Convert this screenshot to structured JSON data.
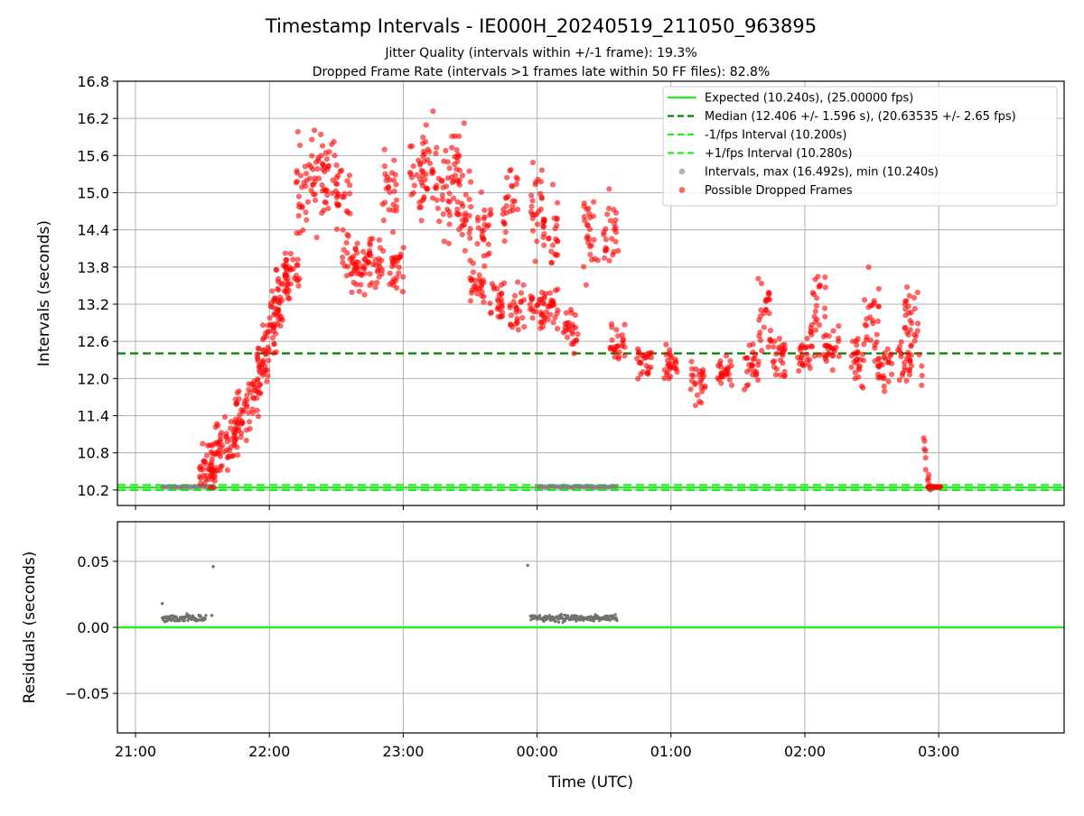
{
  "chart_data": [
    {
      "type": "scatter",
      "title": "Timestamp Intervals - IE000H_20240519_211050_963895",
      "subtitle_1": "Jitter Quality (intervals within +/-1 frame): 19.3%",
      "subtitle_2": "Dropped Frame Rate (intervals >1 frames late within 50 FF files): 82.8%",
      "ylabel": "Intervals (seconds)",
      "ylim": [
        9.95,
        16.8
      ],
      "xlim": [
        "21:00",
        "03:55"
      ],
      "x_unit": "hours since 21:00 UTC",
      "yticks": [
        "10.2",
        "10.8",
        "11.4",
        "12.0",
        "12.6",
        "13.2",
        "13.8",
        "14.4",
        "15.0",
        "15.6",
        "16.2",
        "16.8"
      ],
      "grid": true,
      "legend_position": "top-right",
      "legend": [
        {
          "label": "Expected (10.240s), (25.00000 fps)",
          "style": "solid",
          "color": "#22ee22"
        },
        {
          "label": "Median (12.406 +/- 1.596 s), (20.63535 +/- 2.65 fps)",
          "style": "dashed",
          "color": "#008000"
        },
        {
          "label": "-1/fps Interval (10.200s)",
          "style": "dashed",
          "color": "#22ee22"
        },
        {
          "label": "+1/fps Interval (10.280s)",
          "style": "dashed",
          "color": "#22ee22"
        },
        {
          "label": "Intervals, max (16.492s), min (10.240s)",
          "style": "marker",
          "color": "#808080"
        },
        {
          "label": "Possible Dropped Frames",
          "style": "marker",
          "color": "#ff0000"
        }
      ],
      "lines": {
        "expected": 10.24,
        "median": 12.406,
        "minus_fps": 10.2,
        "plus_fps": 10.28
      },
      "series_gray": {
        "name": "Intervals, max (16.492s), min (10.240s)",
        "segments": [
          {
            "x_start": 0.2,
            "x_end": 0.6,
            "y": 10.25
          },
          {
            "x_start": 3.0,
            "x_end": 3.6,
            "y": 10.25
          }
        ]
      },
      "series_red": {
        "name": "Possible Dropped Frames",
        "trend": [
          [
            0.53,
            10.5,
            0.35
          ],
          [
            0.58,
            10.7,
            0.35
          ],
          [
            0.65,
            10.9,
            0.35
          ],
          [
            0.72,
            11.1,
            0.35
          ],
          [
            0.8,
            11.4,
            0.35
          ],
          [
            0.88,
            11.8,
            0.3
          ],
          [
            0.95,
            12.2,
            0.3
          ],
          [
            1.0,
            12.6,
            0.3
          ],
          [
            1.05,
            13.1,
            0.3
          ],
          [
            1.1,
            13.5,
            0.3
          ],
          [
            1.17,
            13.8,
            0.25
          ],
          [
            1.25,
            15.0,
            0.9
          ],
          [
            1.35,
            15.3,
            0.7
          ],
          [
            1.45,
            15.2,
            0.6
          ],
          [
            1.55,
            14.9,
            0.6
          ],
          [
            1.6,
            13.9,
            0.35
          ],
          [
            1.7,
            13.8,
            0.35
          ],
          [
            1.8,
            13.9,
            0.4
          ],
          [
            1.9,
            15.0,
            0.6
          ],
          [
            1.95,
            13.8,
            0.4
          ],
          [
            2.1,
            15.2,
            0.6
          ],
          [
            2.2,
            15.5,
            0.8
          ],
          [
            2.3,
            15.0,
            0.7
          ],
          [
            2.4,
            15.3,
            0.7
          ],
          [
            2.45,
            14.6,
            0.7
          ],
          [
            2.55,
            13.5,
            0.35
          ],
          [
            2.7,
            13.2,
            0.35
          ],
          [
            2.85,
            13.1,
            0.35
          ],
          [
            3.0,
            13.1,
            0.35
          ],
          [
            3.1,
            13.2,
            0.3
          ],
          [
            3.25,
            12.8,
            0.3
          ],
          [
            2.6,
            14.5,
            0.6
          ],
          [
            2.8,
            14.8,
            0.6
          ],
          [
            3.0,
            14.8,
            0.6
          ],
          [
            3.1,
            14.3,
            0.6
          ],
          [
            3.4,
            14.4,
            0.6
          ],
          [
            3.55,
            14.4,
            0.6
          ],
          [
            3.6,
            12.5,
            0.3
          ],
          [
            3.8,
            12.3,
            0.3
          ],
          [
            4.0,
            12.2,
            0.3
          ],
          [
            4.2,
            12.0,
            0.3
          ],
          [
            4.4,
            12.1,
            0.3
          ],
          [
            4.6,
            12.2,
            0.3
          ],
          [
            4.8,
            12.3,
            0.35
          ],
          [
            5.0,
            12.4,
            0.35
          ],
          [
            5.2,
            12.5,
            0.35
          ],
          [
            5.4,
            12.3,
            0.35
          ],
          [
            5.6,
            12.2,
            0.35
          ],
          [
            5.75,
            12.3,
            0.35
          ],
          [
            4.7,
            13.0,
            0.6
          ],
          [
            5.1,
            13.0,
            0.6
          ],
          [
            5.5,
            12.9,
            0.6
          ],
          [
            5.8,
            13.0,
            0.5
          ]
        ],
        "tail": [
          12.0,
          11.0,
          10.6,
          10.4,
          10.25
        ],
        "min": 10.24,
        "max": 16.492
      }
    },
    {
      "type": "scatter",
      "ylabel": "Residuals (seconds)",
      "xlabel": "Time (UTC)",
      "ylim": [
        -0.08,
        0.08
      ],
      "yticks": [
        "0.05",
        "0.00",
        "−0.05"
      ],
      "xticks": [
        "21:00",
        "22:00",
        "23:00",
        "00:00",
        "01:00",
        "02:00",
        "03:00"
      ],
      "grid": true,
      "zero_line_color": "#22ee22",
      "series": [
        {
          "segment": {
            "x_start": 0.2,
            "x_end": 0.53
          },
          "y": 0.007,
          "outliers": [
            [
              0.2,
              0.018
            ],
            [
              0.58,
              0.046
            ],
            [
              0.57,
              0.009
            ]
          ]
        },
        {
          "segment": {
            "x_start": 2.95,
            "x_end": 3.6
          },
          "y": 0.007,
          "outliers": [
            [
              2.93,
              0.047
            ]
          ]
        }
      ]
    }
  ]
}
